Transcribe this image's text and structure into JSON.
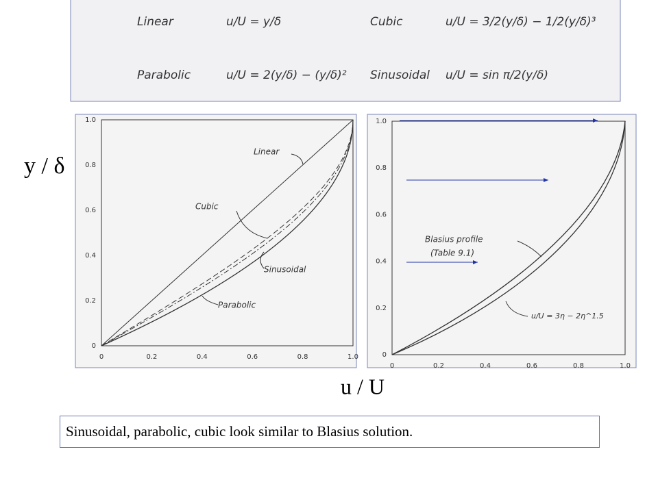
{
  "formulas": [
    {
      "name": "Linear",
      "equation": "u/U = y/δ"
    },
    {
      "name": "Cubic",
      "equation": "u/U = 3/2(y/δ) − 1/2(y/δ)³"
    },
    {
      "name": "Parabolic",
      "equation": "u/U = 2(y/δ) − (y/δ)²"
    },
    {
      "name": "Sinusoidal",
      "equation": "u/U = sin π/2(y/δ)"
    }
  ],
  "y_axis_label": "y / δ",
  "x_axis_label": "u / U",
  "left_plot": {
    "x_ticks": [
      "0",
      "0.2",
      "0.4",
      "0.6",
      "0.8",
      "1.0"
    ],
    "y_ticks": [
      "0",
      "0.2",
      "0.4",
      "0.6",
      "0.8",
      "1.0"
    ],
    "labels": [
      "Linear",
      "Cubic",
      "Sinusoidal",
      "Parabolic"
    ]
  },
  "right_plot": {
    "x_ticks": [
      "0",
      "0.2",
      "0.4",
      "0.6",
      "0.8",
      "1.0"
    ],
    "y_ticks": [
      "0",
      "0.2",
      "0.4",
      "0.6",
      "0.8",
      "1.0"
    ],
    "labels": [
      "Blasius profile",
      "(Table 9.1)",
      "u/U = 3η − 2η^1.5"
    ]
  },
  "caption": "Sinusoidal, parabolic, cubic look similar to Blasius solution."
}
